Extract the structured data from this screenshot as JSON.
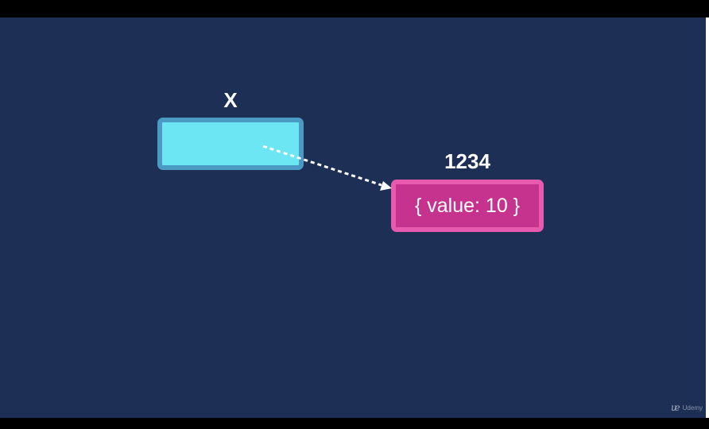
{
  "diagram": {
    "variable": {
      "name": "X",
      "fill_color": "#6de6f4",
      "border_color": "#4a9ac3"
    },
    "object": {
      "address": "1234",
      "content": "{ value: 10 }",
      "fill_color": "#c5338f",
      "border_color": "#e85aad"
    },
    "arrow_color": "#ffffff",
    "background_color": "#1e2f55"
  },
  "watermark": {
    "brand": "Udemy",
    "logo_icon": "udemy-logo-icon"
  }
}
